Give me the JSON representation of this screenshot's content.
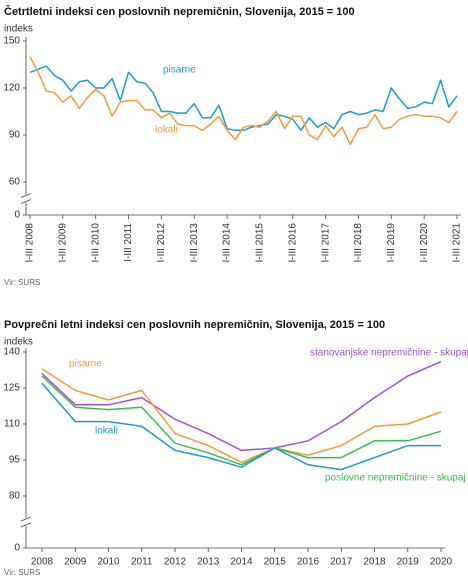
{
  "chart_data": [
    {
      "type": "line",
      "title": "Četrtletni indeksi cen poslovnih nepremičnin, Slovenija, 2015 = 100",
      "y_label": "indeks",
      "source": "Vir: SURS",
      "categories": [
        "I-III 2008",
        null,
        null,
        null,
        "I-III 2009",
        null,
        null,
        null,
        "I-III 2010",
        null,
        null,
        null,
        "I-III 2011",
        null,
        null,
        null,
        "I-III 2012",
        null,
        null,
        null,
        "I-III 2013",
        null,
        null,
        null,
        "I-III 2014",
        null,
        null,
        null,
        "I-III 2015",
        null,
        null,
        null,
        "I-III 2016",
        null,
        null,
        null,
        "I-III 2017",
        null,
        null,
        null,
        "I-III 2018",
        null,
        null,
        null,
        "I-III 2019",
        null,
        null,
        null,
        "I-III 2020",
        null,
        null,
        null,
        "I-III 2021"
      ],
      "series": [
        {
          "name": "pisarne",
          "color": "#1f9bc8",
          "values": [
            130,
            132,
            134,
            128,
            125,
            118,
            124,
            125,
            120,
            120,
            126,
            112,
            130,
            124,
            123,
            117,
            105,
            105,
            104,
            104,
            110,
            101,
            101,
            109,
            94,
            93,
            93,
            95,
            96,
            97,
            103,
            102,
            100,
            93,
            101,
            95,
            98,
            94,
            103,
            105,
            103,
            104,
            106,
            105,
            120,
            113,
            107,
            108,
            111,
            110,
            125,
            108,
            115
          ]
        },
        {
          "name": "lokali",
          "color": "#f39a3a",
          "values": [
            140,
            130,
            118,
            117,
            111,
            115,
            107,
            114,
            119,
            115,
            102,
            111,
            112,
            112,
            106,
            106,
            101,
            104,
            97,
            96,
            96,
            93,
            97,
            102,
            93,
            87,
            95,
            96,
            95,
            99,
            105,
            94,
            102,
            102,
            90,
            87,
            96,
            89,
            95,
            84,
            94,
            95,
            103,
            94,
            95,
            100,
            102,
            103,
            102,
            102,
            101,
            98,
            105
          ]
        }
      ],
      "ylim": [
        0,
        150
      ],
      "yticks": [
        0,
        60,
        90,
        120,
        150
      ],
      "axis_break": [
        0,
        60
      ],
      "grid": false
    },
    {
      "type": "line",
      "title": "Povprečni letni indeksi cen poslovnih nepremičnin, Slovenija, 2015 = 100",
      "y_label": "indeks",
      "source": "Vir: SURS",
      "categories": [
        "2008",
        "2009",
        "2010",
        "2011",
        "2012",
        "2013",
        "2014",
        "2015",
        "2016",
        "2017",
        "2018",
        "2019",
        "2020"
      ],
      "series": [
        {
          "name": "stanovanjske nepremičnine - skupaj",
          "color": "#a64fd8",
          "values": [
            131,
            118,
            118,
            121,
            112,
            106,
            99,
            100,
            103,
            111,
            121,
            130,
            136
          ]
        },
        {
          "name": "pisarne",
          "color": "#f39a3a",
          "values": [
            133,
            124,
            120,
            124,
            106,
            101,
            94,
            100,
            97,
            101,
            109,
            110,
            115
          ]
        },
        {
          "name": "poslovne nepremičnine - skupaj",
          "color": "#34c24a",
          "values": [
            130,
            117,
            116,
            117,
            102,
            98,
            93,
            100,
            96,
            96,
            103,
            103,
            107
          ]
        },
        {
          "name": "lokali",
          "color": "#1f9bc8",
          "values": [
            127,
            111,
            111,
            109,
            99,
            96,
            92,
            100,
            93,
            91,
            96,
            101,
            101
          ]
        }
      ],
      "ylim": [
        0,
        140
      ],
      "yticks": [
        0,
        80,
        95,
        110,
        125,
        140
      ],
      "axis_break": [
        0,
        80
      ],
      "grid": false
    }
  ]
}
